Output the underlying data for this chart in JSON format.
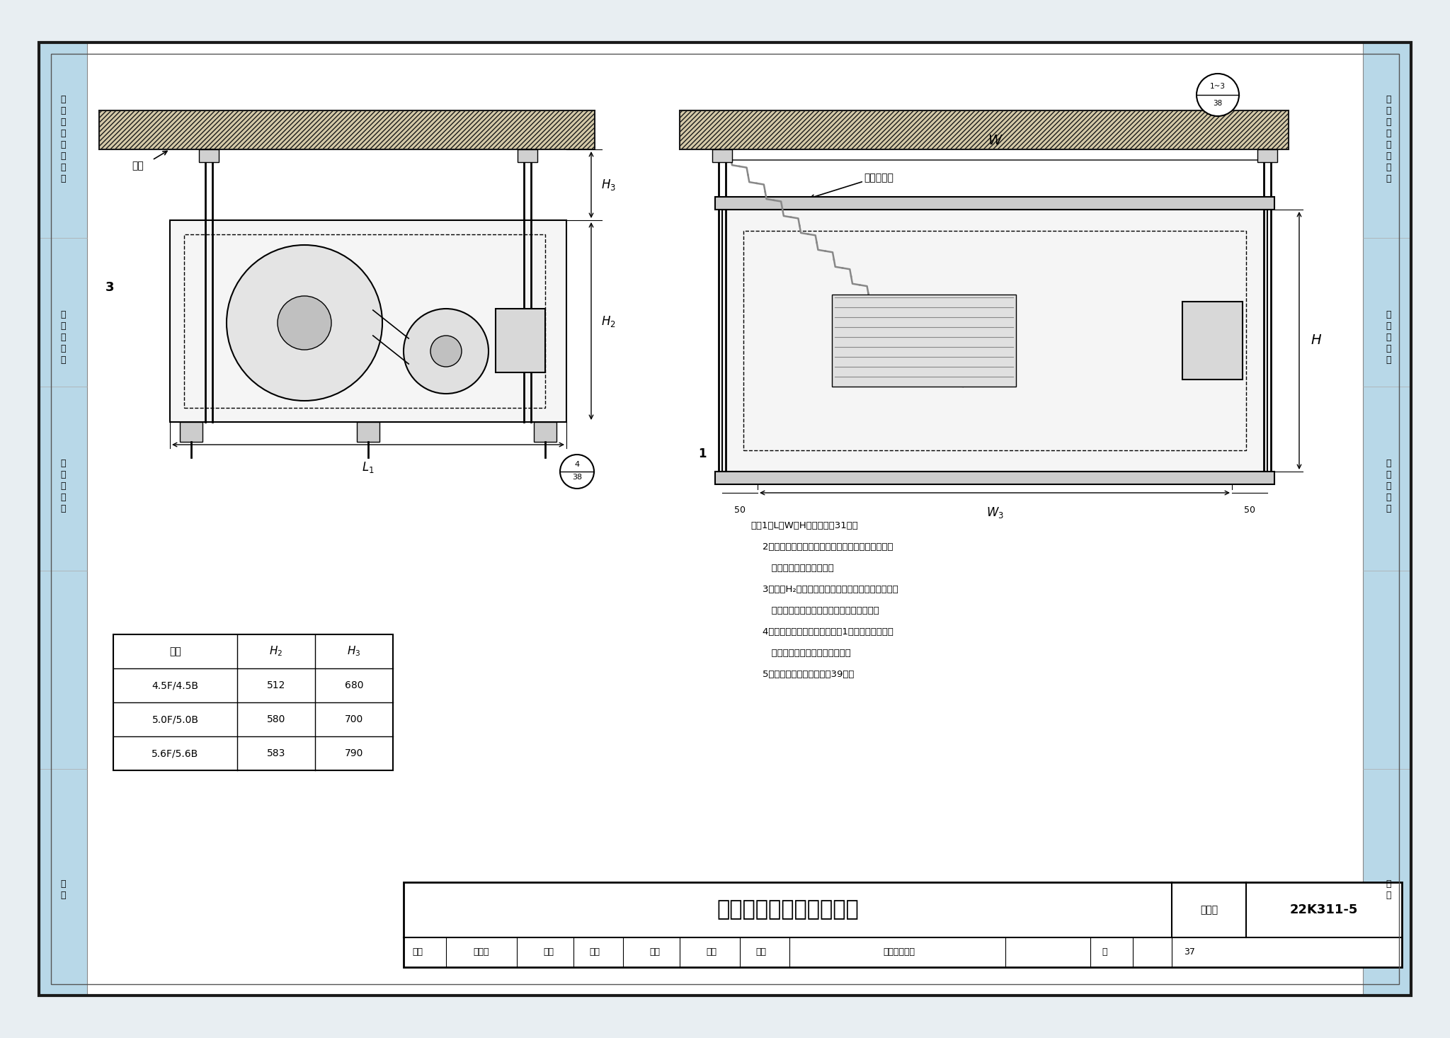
{
  "page_bg": "#e8eef2",
  "drawing_bg": "#ffffff",
  "border_color": "#1a1a1a",
  "line_color": "#1a1a1a",
  "light_blue_bg": "#b8d8e8",
  "atlas_no": "22K311-5",
  "page_no": "37",
  "drawing_title": "离心式排烟风机槽钢吊装",
  "left_labels": [
    "消防排烟风机安装",
    "防火阀安装",
    "防排烟风管",
    "附录"
  ],
  "right_labels": [
    "消防排烟风机安装",
    "防火阀安装",
    "防排烟风管",
    "附录"
  ],
  "notes_title": "注：",
  "notes": [
    "1．L、W、H的尺寸见第31页。",
    "2．成品抗震斜撑杆的材料、规格、长度由设计人员",
    "   根据工程实际情况确定。",
    "3．表中H2为最小尺寸，最大尺寸根据成品抗震斜撑",
    "   杆材料、规格、长度及抗震设计综合确定。",
    "4．本图集以进、出风口位置图1为例进行设计，其",
    "   他形式需要设计人员进行复核。",
    "5．材料明细表见本图集第39页。"
  ],
  "table_col0_header": "机号",
  "table_rows": [
    [
      "4.5F/4.5B",
      "512",
      "680"
    ],
    [
      "5.0F/5.0B",
      "580",
      "700"
    ],
    [
      "5.6F/5.6B",
      "583",
      "790"
    ]
  ],
  "bottom_row_labels": [
    "审核",
    "樊建勋",
    "龙翰",
    "校对",
    "张宽",
    "比宝",
    "设计",
    "张欣然张绪基",
    "页",
    "37"
  ],
  "label_楼板": "楼板",
  "label_3": "3",
  "label_1": "1",
  "label_50a": "50",
  "label_50b": "50",
  "label_抗震": "抗震斜撑杆",
  "label_W": "W",
  "label_H": "H",
  "label_图集号": "图集号",
  "slab_facecolor": "#d4c9a8",
  "fan_box_facecolor": "#f5f5f5",
  "motor_facecolor": "#d8d8d8",
  "base_facecolor": "#cccccc"
}
